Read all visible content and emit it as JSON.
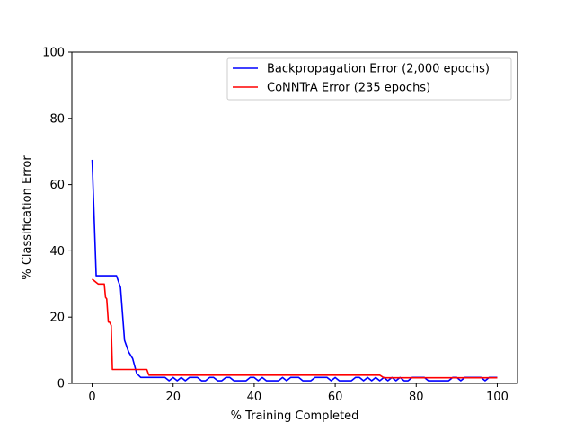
{
  "chart_data": {
    "type": "line",
    "title": "",
    "xlabel": "% Training Completed",
    "ylabel": "% Classification Error",
    "xlim": [
      -5,
      105
    ],
    "ylim": [
      0,
      100
    ],
    "xticks": [
      0,
      20,
      40,
      60,
      80,
      100
    ],
    "yticks": [
      0,
      20,
      40,
      60,
      80,
      100
    ],
    "grid": false,
    "legend_position": "top-right",
    "series": [
      {
        "name": "Backpropagation Error (2,000 epochs)",
        "color": "#0000ff",
        "x": [
          0,
          1,
          2,
          3,
          4,
          5,
          6,
          7,
          8,
          9,
          10,
          11,
          12,
          13,
          14,
          15,
          16,
          17,
          18,
          19,
          20,
          21,
          22,
          23,
          24,
          25,
          26,
          27,
          28,
          29,
          30,
          31,
          32,
          33,
          34,
          35,
          36,
          37,
          38,
          39,
          40,
          41,
          42,
          43,
          44,
          45,
          46,
          47,
          48,
          49,
          50,
          51,
          52,
          53,
          54,
          55,
          56,
          57,
          58,
          59,
          60,
          61,
          62,
          63,
          64,
          65,
          66,
          67,
          68,
          69,
          70,
          71,
          72,
          73,
          74,
          75,
          76,
          77,
          78,
          79,
          80,
          81,
          82,
          83,
          84,
          85,
          86,
          87,
          88,
          89,
          90,
          91,
          92,
          93,
          94,
          95,
          96,
          97,
          98,
          99,
          100
        ],
        "y": [
          67.5,
          32.5,
          32.5,
          32.5,
          32.5,
          32.5,
          32.5,
          29,
          13,
          9.5,
          7.5,
          3,
          1.8,
          1.8,
          1.8,
          1.8,
          1.8,
          1.8,
          1.8,
          0.8,
          1.8,
          0.8,
          1.8,
          0.8,
          1.8,
          1.8,
          1.8,
          0.8,
          0.8,
          1.8,
          1.8,
          0.8,
          0.8,
          1.8,
          1.8,
          0.8,
          0.8,
          0.8,
          0.8,
          1.8,
          1.8,
          0.8,
          1.8,
          0.8,
          0.8,
          0.8,
          0.8,
          1.8,
          0.8,
          1.8,
          1.8,
          1.8,
          0.8,
          0.8,
          0.8,
          1.8,
          1.8,
          1.8,
          1.8,
          0.8,
          1.8,
          0.8,
          0.8,
          0.8,
          0.8,
          1.8,
          1.8,
          0.8,
          1.8,
          0.8,
          1.8,
          0.8,
          1.8,
          0.8,
          1.8,
          0.8,
          1.8,
          0.8,
          0.8,
          1.8,
          1.8,
          1.8,
          1.8,
          0.8,
          0.8,
          0.8,
          0.8,
          0.8,
          0.8,
          1.8,
          1.8,
          0.8,
          1.8,
          1.8,
          1.8,
          1.8,
          1.8,
          0.8,
          1.8,
          1.8,
          1.8
        ]
      },
      {
        "name": "CoNNTrA Error (235 epochs)",
        "color": "#ff0000",
        "x": [
          0,
          0.5,
          1,
          1.5,
          2,
          2.5,
          3,
          3.3,
          3.6,
          4,
          4.3,
          4.7,
          5,
          5.5,
          6,
          8,
          10,
          12,
          13.5,
          14,
          16,
          20,
          30,
          40,
          50,
          60,
          65,
          70,
          71,
          72,
          80,
          90,
          100
        ],
        "y": [
          31.5,
          31,
          30.5,
          30,
          30,
          30,
          30,
          26,
          25.5,
          18.5,
          18.5,
          17.5,
          4.2,
          4.2,
          4.2,
          4.2,
          4.2,
          4.2,
          4.2,
          2.5,
          2.5,
          2.5,
          2.5,
          2.5,
          2.5,
          2.5,
          2.5,
          2.5,
          2.5,
          1.7,
          1.7,
          1.7,
          1.7
        ]
      }
    ]
  }
}
